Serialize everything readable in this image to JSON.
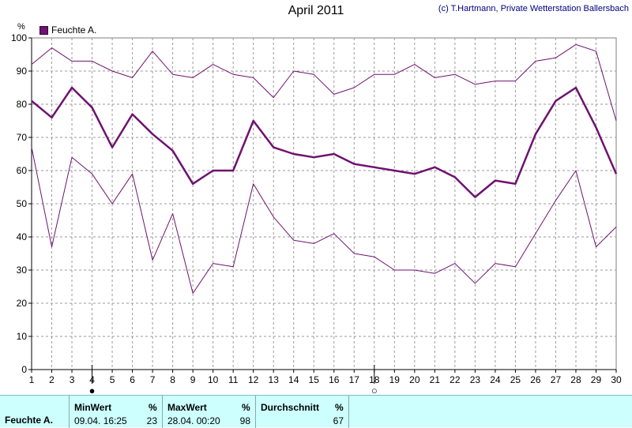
{
  "header": {
    "title": "April 2011",
    "credit": "(c) T.Hartmann, Private Wetterstation Ballersbach",
    "unit": "%",
    "legend_label": "Feuchte A."
  },
  "chart_data": {
    "type": "line",
    "title": "April 2011",
    "xlabel": "",
    "ylabel": "%",
    "x": [
      1,
      2,
      3,
      4,
      5,
      6,
      7,
      8,
      9,
      10,
      11,
      12,
      13,
      14,
      15,
      16,
      17,
      18,
      19,
      20,
      21,
      22,
      23,
      24,
      25,
      26,
      27,
      28,
      29,
      30
    ],
    "ylim": [
      0,
      100
    ],
    "yticks": [
      0,
      10,
      20,
      30,
      40,
      50,
      60,
      70,
      80,
      90,
      100
    ],
    "grid": true,
    "legend_position": "top-left",
    "series": [
      {
        "name": "Feuchte A.",
        "role": "max",
        "color": "#6f1270",
        "values": [
          92,
          97,
          93,
          93,
          90,
          88,
          96,
          89,
          88,
          92,
          89,
          88,
          82,
          90,
          89,
          83,
          85,
          89,
          89,
          92,
          88,
          89,
          86,
          87,
          87,
          93,
          94,
          98,
          96,
          75
        ]
      },
      {
        "name": "Feuchte A.",
        "role": "avg",
        "color": "#6f1270",
        "values": [
          81,
          76,
          85,
          79,
          67,
          77,
          71,
          66,
          56,
          60,
          60,
          75,
          67,
          65,
          64,
          65,
          62,
          61,
          60,
          59,
          61,
          58,
          52,
          57,
          56,
          71,
          81,
          85,
          73,
          59
        ]
      },
      {
        "name": "Feuchte A.",
        "role": "min",
        "color": "#6f1270",
        "values": [
          67,
          37,
          64,
          59,
          50,
          59,
          33,
          47,
          23,
          32,
          31,
          56,
          46,
          39,
          38,
          41,
          35,
          34,
          30,
          30,
          29,
          32,
          26,
          32,
          31,
          41,
          51,
          60,
          37,
          43
        ]
      }
    ],
    "moon_phases": [
      {
        "x": 4,
        "phase": "full",
        "symbol": "●"
      },
      {
        "x": 18,
        "phase": "new",
        "symbol": "○"
      }
    ]
  },
  "stats": {
    "row_label": "Feuchte A.",
    "min_header": "MinWert",
    "min_unit": "%",
    "min_time": "09.04.  16:25",
    "min_value": "23",
    "max_header": "MaxWert",
    "max_unit": "%",
    "max_time": "28.04.  00:20",
    "max_value": "98",
    "avg_header": "Durchschnitt",
    "avg_unit": "%",
    "avg_value": "67"
  }
}
